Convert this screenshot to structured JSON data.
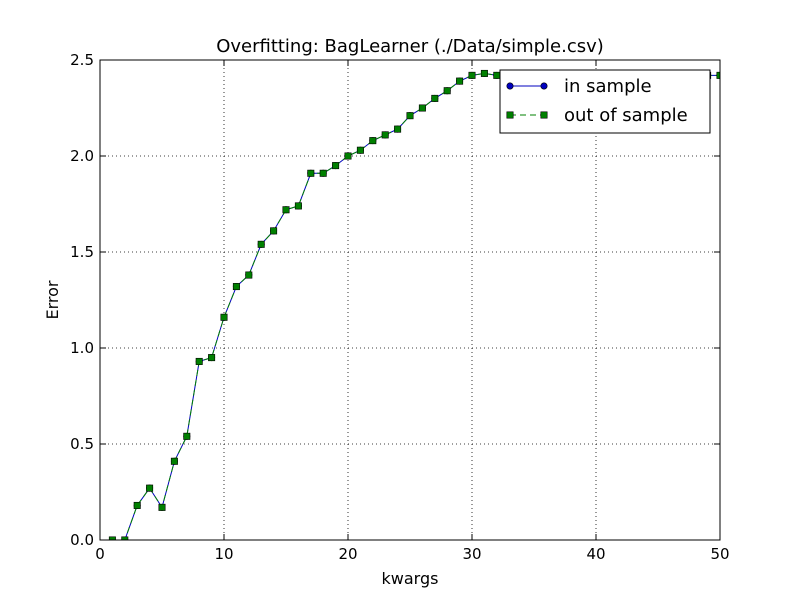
{
  "chart_data": {
    "type": "line",
    "title": "Overfitting: BagLearner (./Data/simple.csv)",
    "xlabel": "kwargs",
    "ylabel": "Error",
    "xlim": [
      0,
      50
    ],
    "ylim": [
      0,
      2.5
    ],
    "xticks": [
      0,
      10,
      20,
      30,
      40,
      50
    ],
    "yticks": [
      0.0,
      0.5,
      1.0,
      1.5,
      2.0,
      2.5
    ],
    "xtick_labels": [
      "0",
      "10",
      "20",
      "30",
      "40",
      "50"
    ],
    "ytick_labels": [
      "0.0",
      "0.5",
      "1.0",
      "1.5",
      "2.0",
      "2.5"
    ],
    "grid": true,
    "legend_position": "top-right",
    "x": [
      1,
      2,
      3,
      4,
      5,
      6,
      7,
      8,
      9,
      10,
      11,
      12,
      13,
      14,
      15,
      16,
      17,
      18,
      19,
      20,
      21,
      22,
      23,
      24,
      25,
      26,
      27,
      28,
      29,
      30,
      31,
      32,
      33,
      34,
      35,
      36,
      37,
      38,
      39,
      40,
      41,
      42,
      43,
      44,
      45,
      46,
      47,
      48,
      49,
      50
    ],
    "series": [
      {
        "name": "in sample",
        "color": "#0000bf",
        "marker": "circle",
        "linestyle": "solid",
        "values": [
          0.0,
          0.0,
          0.18,
          0.27,
          0.17,
          0.41,
          0.54,
          0.93,
          0.95,
          1.16,
          1.32,
          1.38,
          1.54,
          1.61,
          1.72,
          1.74,
          1.91,
          1.91,
          1.95,
          2.0,
          2.03,
          2.08,
          2.11,
          2.14,
          2.21,
          2.25,
          2.3,
          2.34,
          2.39,
          2.42,
          2.43,
          2.42,
          2.43,
          2.43,
          2.43,
          2.42,
          2.42,
          2.42,
          2.42,
          2.42,
          2.42,
          2.42,
          2.42,
          2.42,
          2.42,
          2.42,
          2.42,
          2.42,
          2.42,
          2.42
        ]
      },
      {
        "name": "out of sample",
        "color": "#008000",
        "marker": "square",
        "linestyle": "dashed",
        "values": [
          0.0,
          0.0,
          0.18,
          0.27,
          0.17,
          0.41,
          0.54,
          0.93,
          0.95,
          1.16,
          1.32,
          1.38,
          1.54,
          1.61,
          1.72,
          1.74,
          1.91,
          1.91,
          1.95,
          2.0,
          2.03,
          2.08,
          2.11,
          2.14,
          2.21,
          2.25,
          2.3,
          2.34,
          2.39,
          2.42,
          2.43,
          2.42,
          2.43,
          2.43,
          2.43,
          2.42,
          2.42,
          2.42,
          2.42,
          2.42,
          2.42,
          2.42,
          2.42,
          2.42,
          2.42,
          2.42,
          2.42,
          2.42,
          2.42,
          2.42
        ]
      }
    ]
  }
}
